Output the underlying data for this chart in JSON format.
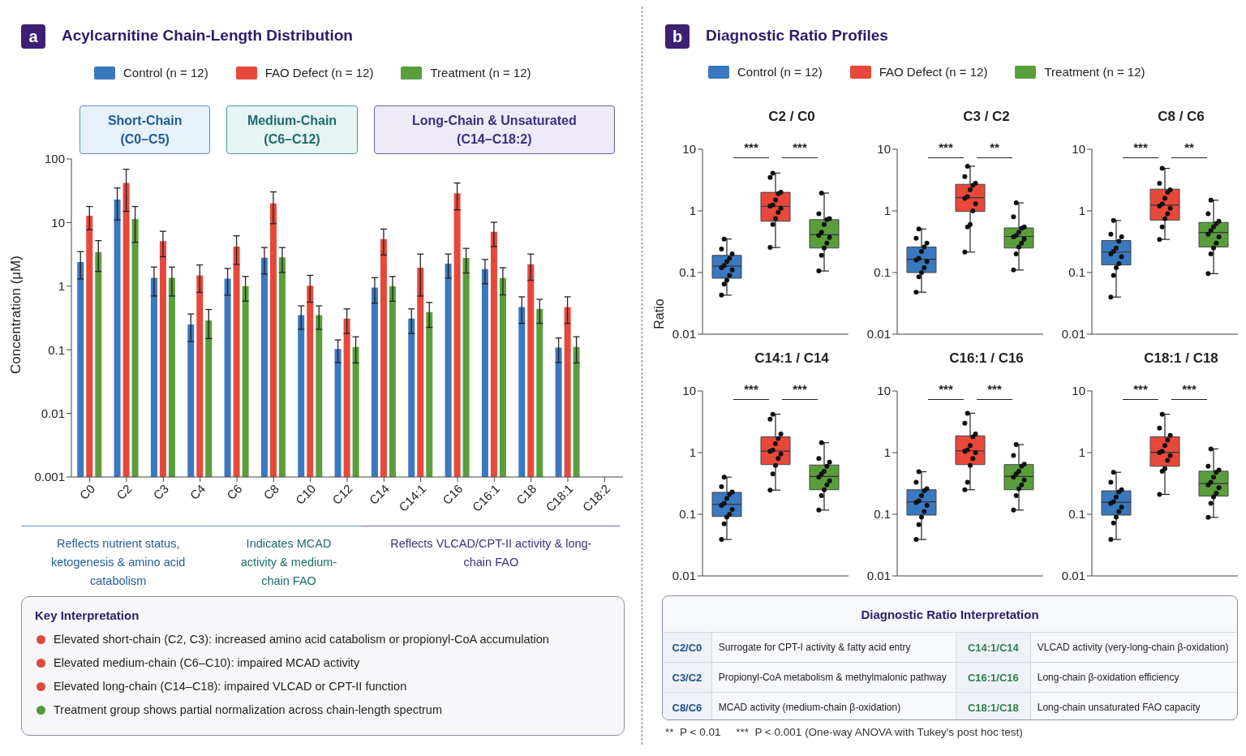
{
  "chart_data": [
    {
      "type": "bar",
      "title": "Acylcarnitine Chain-Length Distribution",
      "ylabel": "Concentration (μM)",
      "categories": [
        "C0",
        "C2",
        "C3",
        "C4",
        "C6",
        "C8",
        "C10",
        "C12",
        "C14",
        "C14:1",
        "C16",
        "C16:1",
        "C18",
        "C18:1",
        "C18:2"
      ],
      "log": true,
      "ylim": [
        0.001,
        100
      ],
      "yticks": [
        0.001,
        0.01,
        0.1,
        1,
        10,
        100
      ],
      "legend": "top",
      "series": [
        {
          "name": "Control (n = 12)",
          "color": "#3a78c0",
          "values": [
            2.4,
            23,
            1.35,
            0.25,
            1.31,
            2.8,
            0.35,
            0.103,
            0.95,
            0.31,
            2.27,
            1.86,
            0.47,
            0.108,
            null
          ],
          "errors": [
            1.1,
            12,
            0.65,
            0.115,
            0.59,
            1.25,
            0.14,
            0.04,
            0.41,
            0.13,
            0.93,
            0.77,
            0.21,
            0.045,
            null
          ]
        },
        {
          "name": "FAO Defect (n = 12)",
          "color": "#e8483a",
          "values": [
            12.8,
            42,
            5.1,
            1.48,
            4.2,
            20,
            1.02,
            0.31,
            5.5,
            1.95,
            28.9,
            7.15,
            2.22,
            0.47,
            null
          ],
          "errors": [
            5.1,
            27,
            2.2,
            0.68,
            2.0,
            10.4,
            0.46,
            0.13,
            2.4,
            1.25,
            13,
            2.95,
            0.98,
            0.21,
            null
          ]
        },
        {
          "name": "Treatment (n = 12)",
          "color": "#5a9e3c",
          "values": [
            3.45,
            11.4,
            1.35,
            0.29,
            1.0,
            2.85,
            0.35,
            0.111,
            1.0,
            0.39,
            2.77,
            1.34,
            0.44,
            0.111,
            null
          ],
          "errors": [
            1.75,
            6.5,
            0.65,
            0.14,
            0.42,
            1.2,
            0.14,
            0.049,
            0.42,
            0.165,
            1.16,
            0.61,
            0.18,
            0.049,
            null
          ]
        }
      ],
      "annotations": [
        "a",
        "Short-Chain (C0–C5)",
        "Medium-Chain (C6–C12)",
        "Long-Chain & Unsaturated (C14–C18:2)",
        "Reflects nutrient status, ketogenesis & amino acid catabolism",
        "Indicates MCAD activity & medium-chain FAO",
        "Reflects VLCAD/CPT-II activity & long-chain FAO"
      ]
    },
    {
      "type": "box",
      "title": "C2 / C0",
      "ylabel": "Ratio",
      "categories": [
        null,
        null,
        null
      ],
      "log": true,
      "ylim": [
        0.01,
        10
      ],
      "yticks": [
        0.01,
        0.1,
        1,
        10
      ],
      "legend": "top",
      "annotations": [
        "***",
        "***",
        "b",
        "Diagnostic Ratio Profiles"
      ],
      "series": [
        {
          "name": "Control (n = 12)",
          "color": "#3a78c0",
          "boxes": [
            {
              "low": 0.043,
              "q1": 0.081,
              "median": 0.127,
              "q3": 0.19,
              "high": 0.35
            },
            null,
            null
          ]
        },
        {
          "name": "FAO Defect (n = 12)",
          "color": "#e8483a",
          "boxes": [
            null,
            {
              "low": 0.255,
              "q1": 0.68,
              "median": 1.19,
              "q3": 2.0,
              "high": 4.1
            },
            null
          ]
        },
        {
          "name": "Treatment (n = 12)",
          "color": "#5a9e3c",
          "boxes": [
            null,
            null,
            {
              "low": 0.106,
              "q1": 0.25,
              "median": 0.41,
              "q3": 0.72,
              "high": 1.95
            }
          ]
        },
        {
          "type": "scatter",
          "color": "#111111",
          "values": [
            0.043,
            0.255,
            0.106
          ]
        },
        {
          "type": "scatter",
          "color": "#111111",
          "values": [
            0.065,
            0.6,
            0.19
          ]
        },
        {
          "type": "scatter",
          "color": "#111111",
          "values": [
            0.075,
            0.75,
            0.25
          ]
        },
        {
          "type": "scatter",
          "color": "#111111",
          "values": [
            0.09,
            0.95,
            0.3
          ]
        },
        {
          "type": "scatter",
          "color": "#111111",
          "values": [
            0.11,
            1.1,
            0.37
          ]
        },
        {
          "type": "scatter",
          "color": "#111111",
          "values": [
            0.12,
            1.2,
            0.4
          ]
        },
        {
          "type": "scatter",
          "color": "#111111",
          "values": [
            0.13,
            1.25,
            0.45
          ]
        },
        {
          "type": "scatter",
          "color": "#111111",
          "values": [
            0.15,
            1.5,
            0.6
          ]
        },
        {
          "type": "scatter",
          "color": "#111111",
          "values": [
            0.17,
            1.9,
            0.72
          ]
        },
        {
          "type": "scatter",
          "color": "#111111",
          "values": [
            0.2,
            2.0,
            0.75
          ]
        },
        {
          "type": "scatter",
          "color": "#111111",
          "values": [
            0.24,
            3.5,
            0.9
          ]
        },
        {
          "type": "scatter",
          "color": "#111111",
          "values": [
            0.35,
            4.1,
            1.95
          ]
        }
      ]
    },
    {
      "type": "box",
      "title": "C3 / C2",
      "categories": [
        null,
        null,
        null
      ],
      "log": true,
      "ylim": [
        0.01,
        10
      ],
      "yticks": [
        0.01,
        0.1,
        1,
        10
      ],
      "annotations": [
        "***",
        "**"
      ],
      "series": [
        {
          "color": "#3a78c0",
          "boxes": [
            {
              "low": 0.048,
              "q1": 0.1,
              "median": 0.164,
              "q3": 0.26,
              "high": 0.51
            },
            null,
            null
          ]
        },
        {
          "color": "#e8483a",
          "boxes": [
            null,
            {
              "low": 0.215,
              "q1": 0.98,
              "median": 1.64,
              "q3": 2.7,
              "high": 5.3
            },
            null
          ]
        },
        {
          "color": "#5a9e3c",
          "boxes": [
            null,
            null,
            {
              "low": 0.11,
              "q1": 0.25,
              "median": 0.385,
              "q3": 0.53,
              "high": 1.35
            }
          ]
        },
        {
          "type": "scatter",
          "color": "#111111",
          "values": [
            0.048,
            0.215,
            0.11
          ]
        },
        {
          "type": "scatter",
          "color": "#111111",
          "values": [
            0.085,
            0.55,
            0.2
          ]
        },
        {
          "type": "scatter",
          "color": "#111111",
          "values": [
            0.1,
            0.6,
            0.26
          ]
        },
        {
          "type": "scatter",
          "color": "#111111",
          "values": [
            0.12,
            1.0,
            0.3
          ]
        },
        {
          "type": "scatter",
          "color": "#111111",
          "values": [
            0.15,
            1.3,
            0.35
          ]
        },
        {
          "type": "scatter",
          "color": "#111111",
          "values": [
            0.16,
            1.6,
            0.38
          ]
        },
        {
          "type": "scatter",
          "color": "#111111",
          "values": [
            0.17,
            1.7,
            0.4
          ]
        },
        {
          "type": "scatter",
          "color": "#111111",
          "values": [
            0.22,
            2.2,
            0.45
          ]
        },
        {
          "type": "scatter",
          "color": "#111111",
          "values": [
            0.26,
            2.6,
            0.52
          ]
        },
        {
          "type": "scatter",
          "color": "#111111",
          "values": [
            0.3,
            2.8,
            0.55
          ]
        },
        {
          "type": "scatter",
          "color": "#111111",
          "values": [
            0.36,
            3.6,
            0.8
          ]
        },
        {
          "type": "scatter",
          "color": "#111111",
          "values": [
            0.51,
            5.3,
            1.35
          ]
        }
      ]
    },
    {
      "type": "box",
      "title": "C8 / C6",
      "categories": [
        null,
        null,
        null
      ],
      "log": true,
      "ylim": [
        0.01,
        10
      ],
      "yticks": [
        0.01,
        0.1,
        1,
        10
      ],
      "annotations": [
        "***",
        "**"
      ],
      "series": [
        {
          "color": "#3a78c0",
          "boxes": [
            {
              "low": 0.04,
              "q1": 0.133,
              "median": 0.215,
              "q3": 0.33,
              "high": 0.7
            },
            null,
            null
          ]
        },
        {
          "color": "#e8483a",
          "boxes": [
            null,
            {
              "low": 0.345,
              "q1": 0.71,
              "median": 1.24,
              "q3": 2.25,
              "high": 4.9
            },
            null
          ]
        },
        {
          "color": "#5a9e3c",
          "boxes": [
            null,
            null,
            {
              "low": 0.096,
              "q1": 0.26,
              "median": 0.445,
              "q3": 0.65,
              "high": 1.49
            }
          ]
        },
        {
          "type": "scatter",
          "color": "#111111",
          "values": [
            0.04,
            0.345,
            0.096
          ]
        },
        {
          "type": "scatter",
          "color": "#111111",
          "values": [
            0.09,
            0.55,
            0.2
          ]
        },
        {
          "type": "scatter",
          "color": "#111111",
          "values": [
            0.12,
            0.75,
            0.25
          ]
        },
        {
          "type": "scatter",
          "color": "#111111",
          "values": [
            0.14,
            0.9,
            0.3
          ]
        },
        {
          "type": "scatter",
          "color": "#111111",
          "values": [
            0.18,
            1.1,
            0.38
          ]
        },
        {
          "type": "scatter",
          "color": "#111111",
          "values": [
            0.2,
            1.2,
            0.42
          ]
        },
        {
          "type": "scatter",
          "color": "#111111",
          "values": [
            0.22,
            1.3,
            0.48
          ]
        },
        {
          "type": "scatter",
          "color": "#111111",
          "values": [
            0.25,
            1.6,
            0.55
          ]
        },
        {
          "type": "scatter",
          "color": "#111111",
          "values": [
            0.32,
            2.0,
            0.62
          ]
        },
        {
          "type": "scatter",
          "color": "#111111",
          "values": [
            0.38,
            2.2,
            0.68
          ]
        },
        {
          "type": "scatter",
          "color": "#111111",
          "values": [
            0.42,
            2.8,
            0.9
          ]
        },
        {
          "type": "scatter",
          "color": "#111111",
          "values": [
            0.7,
            4.9,
            1.49
          ]
        }
      ]
    },
    {
      "type": "box",
      "title": "C14:1 / C14",
      "categories": [
        null,
        null,
        null
      ],
      "log": true,
      "ylim": [
        0.01,
        10
      ],
      "yticks": [
        0.01,
        0.1,
        1,
        10
      ],
      "annotations": [
        "***",
        "***"
      ],
      "series": [
        {
          "color": "#3a78c0",
          "boxes": [
            {
              "low": 0.039,
              "q1": 0.092,
              "median": 0.144,
              "q3": 0.227,
              "high": 0.4
            },
            null,
            null
          ]
        },
        {
          "color": "#e8483a",
          "boxes": [
            null,
            {
              "low": 0.247,
              "q1": 0.64,
              "median": 1.06,
              "q3": 1.8,
              "high": 4.2
            },
            null
          ]
        },
        {
          "color": "#5a9e3c",
          "boxes": [
            null,
            null,
            {
              "low": 0.117,
              "q1": 0.25,
              "median": 0.41,
              "q3": 0.63,
              "high": 1.45
            }
          ]
        },
        {
          "type": "scatter",
          "color": "#111111",
          "values": [
            0.039,
            0.247,
            0.117
          ]
        },
        {
          "type": "scatter",
          "color": "#111111",
          "values": [
            0.07,
            0.45,
            0.2
          ]
        },
        {
          "type": "scatter",
          "color": "#111111",
          "values": [
            0.09,
            0.62,
            0.25
          ]
        },
        {
          "type": "scatter",
          "color": "#111111",
          "values": [
            0.1,
            0.8,
            0.3
          ]
        },
        {
          "type": "scatter",
          "color": "#111111",
          "values": [
            0.12,
            0.95,
            0.35
          ]
        },
        {
          "type": "scatter",
          "color": "#111111",
          "values": [
            0.14,
            1.05,
            0.4
          ]
        },
        {
          "type": "scatter",
          "color": "#111111",
          "values": [
            0.15,
            1.1,
            0.45
          ]
        },
        {
          "type": "scatter",
          "color": "#111111",
          "values": [
            0.18,
            1.4,
            0.5
          ]
        },
        {
          "type": "scatter",
          "color": "#111111",
          "values": [
            0.21,
            1.7,
            0.6
          ]
        },
        {
          "type": "scatter",
          "color": "#111111",
          "values": [
            0.23,
            2.0,
            0.7
          ]
        },
        {
          "type": "scatter",
          "color": "#111111",
          "values": [
            0.28,
            3.5,
            0.8
          ]
        },
        {
          "type": "scatter",
          "color": "#111111",
          "values": [
            0.4,
            4.2,
            1.45
          ]
        }
      ]
    },
    {
      "type": "box",
      "title": "C16:1 / C16",
      "categories": [
        null,
        null,
        null
      ],
      "log": true,
      "ylim": [
        0.01,
        10
      ],
      "yticks": [
        0.01,
        0.1,
        1,
        10
      ],
      "annotations": [
        "***",
        "***"
      ],
      "series": [
        {
          "color": "#3a78c0",
          "boxes": [
            {
              "low": 0.039,
              "q1": 0.097,
              "median": 0.159,
              "q3": 0.25,
              "high": 0.49
            },
            null,
            null
          ]
        },
        {
          "color": "#e8483a",
          "boxes": [
            null,
            {
              "low": 0.25,
              "q1": 0.64,
              "median": 1.07,
              "q3": 1.87,
              "high": 4.35
            },
            null
          ]
        },
        {
          "color": "#5a9e3c",
          "boxes": [
            null,
            null,
            {
              "low": 0.117,
              "q1": 0.25,
              "median": 0.41,
              "q3": 0.64,
              "high": 1.35
            }
          ]
        },
        {
          "type": "scatter",
          "color": "#111111",
          "values": [
            0.039,
            0.25,
            0.117
          ]
        },
        {
          "type": "scatter",
          "color": "#111111",
          "values": [
            0.068,
            0.33,
            0.2
          ]
        },
        {
          "type": "scatter",
          "color": "#111111",
          "values": [
            0.09,
            0.62,
            0.26
          ]
        },
        {
          "type": "scatter",
          "color": "#111111",
          "values": [
            0.11,
            0.8,
            0.3
          ]
        },
        {
          "type": "scatter",
          "color": "#111111",
          "values": [
            0.14,
            1.0,
            0.36
          ]
        },
        {
          "type": "scatter",
          "color": "#111111",
          "values": [
            0.155,
            1.05,
            0.4
          ]
        },
        {
          "type": "scatter",
          "color": "#111111",
          "values": [
            0.165,
            1.1,
            0.45
          ]
        },
        {
          "type": "scatter",
          "color": "#111111",
          "values": [
            0.2,
            1.3,
            0.5
          ]
        },
        {
          "type": "scatter",
          "color": "#111111",
          "values": [
            0.24,
            1.8,
            0.6
          ]
        },
        {
          "type": "scatter",
          "color": "#111111",
          "values": [
            0.26,
            2.0,
            0.65
          ]
        },
        {
          "type": "scatter",
          "color": "#111111",
          "values": [
            0.33,
            3.0,
            0.9
          ]
        },
        {
          "type": "scatter",
          "color": "#111111",
          "values": [
            0.49,
            4.35,
            1.35
          ]
        }
      ]
    },
    {
      "type": "box",
      "title": "C18:1 / C18",
      "categories": [
        null,
        null,
        null
      ],
      "log": true,
      "ylim": [
        0.01,
        10
      ],
      "yticks": [
        0.01,
        0.1,
        1,
        10
      ],
      "annotations": [
        "***",
        "***"
      ],
      "series": [
        {
          "color": "#3a78c0",
          "boxes": [
            {
              "low": 0.039,
              "q1": 0.097,
              "median": 0.157,
              "q3": 0.24,
              "high": 0.48
            },
            null,
            null
          ]
        },
        {
          "color": "#e8483a",
          "boxes": [
            null,
            {
              "low": 0.21,
              "q1": 0.6,
              "median": 1.01,
              "q3": 1.8,
              "high": 4.2
            },
            null
          ]
        },
        {
          "color": "#5a9e3c",
          "boxes": [
            null,
            null,
            {
              "low": 0.089,
              "q1": 0.197,
              "median": 0.315,
              "q3": 0.5,
              "high": 1.15
            }
          ]
        },
        {
          "type": "scatter",
          "color": "#111111",
          "values": [
            0.039,
            0.21,
            0.089
          ]
        },
        {
          "type": "scatter",
          "color": "#111111",
          "values": [
            0.072,
            0.5,
            0.15
          ]
        },
        {
          "type": "scatter",
          "color": "#111111",
          "values": [
            0.09,
            0.55,
            0.19
          ]
        },
        {
          "type": "scatter",
          "color": "#111111",
          "values": [
            0.11,
            0.75,
            0.22
          ]
        },
        {
          "type": "scatter",
          "color": "#111111",
          "values": [
            0.13,
            0.9,
            0.27
          ]
        },
        {
          "type": "scatter",
          "color": "#111111",
          "values": [
            0.15,
            1.0,
            0.3
          ]
        },
        {
          "type": "scatter",
          "color": "#111111",
          "values": [
            0.16,
            1.05,
            0.33
          ]
        },
        {
          "type": "scatter",
          "color": "#111111",
          "values": [
            0.19,
            1.3,
            0.4
          ]
        },
        {
          "type": "scatter",
          "color": "#111111",
          "values": [
            0.23,
            1.6,
            0.48
          ]
        },
        {
          "type": "scatter",
          "color": "#111111",
          "values": [
            0.25,
            1.9,
            0.52
          ]
        },
        {
          "type": "scatter",
          "color": "#111111",
          "values": [
            0.33,
            2.5,
            0.6
          ]
        },
        {
          "type": "scatter",
          "color": "#111111",
          "values": [
            0.48,
            4.2,
            1.15
          ]
        }
      ]
    },
    {
      "type": "other",
      "title": "Key Interpretation",
      "colors": [
        "#e0493a",
        "#e0493a",
        "#e0493a",
        "#4f9a3a"
      ],
      "annotations": [
        "Elevated short-chain (C2, C3): increased amino acid catabolism or propionyl-CoA accumulation",
        "Elevated medium-chain (C6–C10): impaired MCAD activity",
        "Elevated long-chain (C14–C18): impaired VLCAD or CPT-II function",
        "Treatment group shows partial normalization across chain-length spectrum"
      ]
    },
    {
      "type": "other",
      "title": "Diagnostic Ratio Interpretation",
      "annotations": [
        "C2/C0",
        "Surrogate for CPT-I activity & fatty acid entry",
        "C14:1/C14",
        "VLCAD activity (very-long-chain β-oxidation)",
        "C3/C2",
        "Propionyl-CoA metabolism & methylmalonic pathway",
        "C16:1/C16",
        "Long-chain β-oxidation efficiency",
        "C8/C6",
        "MCAD activity (medium-chain β-oxidation)",
        "C18:1/C18",
        "Long-chain unsaturated FAO capacity",
        "**  P < 0.01     ***  P < 0.001 (One-way ANOVA with Tukey's post hoc test)"
      ]
    }
  ]
}
